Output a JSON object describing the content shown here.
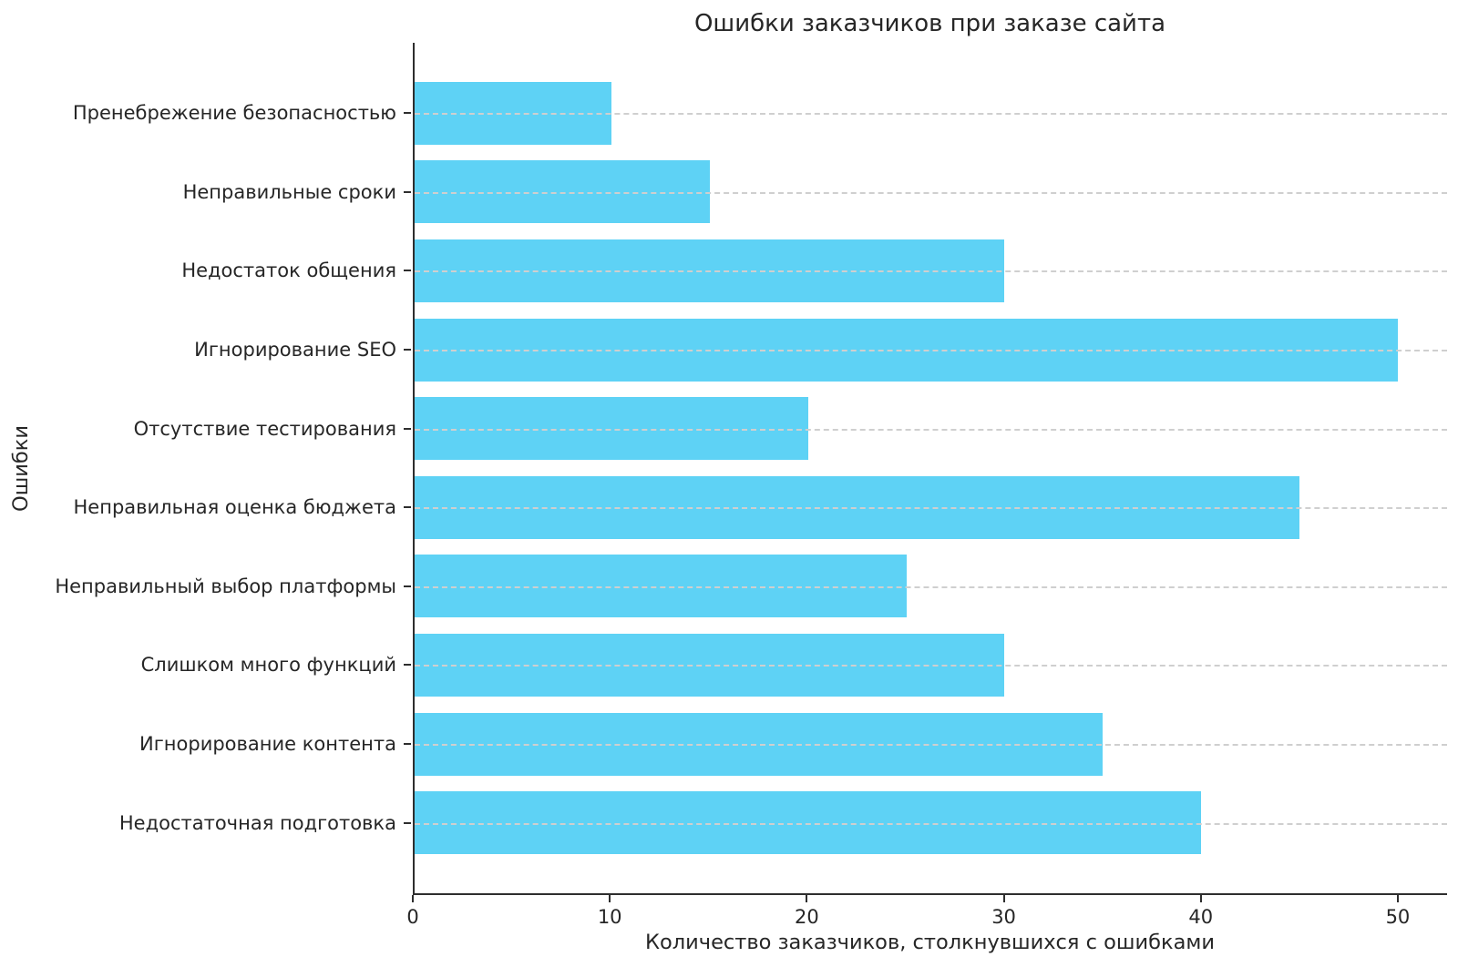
{
  "chart_data": {
    "type": "bar",
    "orientation": "horizontal",
    "title": "Ошибки заказчиков при заказе сайта",
    "xlabel": "Количество заказчиков, столкнувшихся с ошибками",
    "ylabel": "Ошибки",
    "categories": [
      "Пренебрежение безопасностью",
      "Неправильные сроки",
      "Недостаток общения",
      "Игнорирование SEO",
      "Отсутствие тестирования",
      "Неправильная оценка бюджета",
      "Неправильный выбор платформы",
      "Слишком много функций",
      "Игнорирование контента",
      "Недостаточная подготовка"
    ],
    "values": [
      10,
      15,
      30,
      50,
      20,
      45,
      25,
      30,
      35,
      40
    ],
    "xticks": [
      "0",
      "10",
      "20",
      "30",
      "40",
      "50"
    ],
    "xtick_values": [
      0,
      10,
      20,
      30,
      40,
      50
    ],
    "xlim": [
      0,
      52.5
    ],
    "bar_color": "#5ed2f5",
    "grid_color": "#cfcfcf",
    "grid_style": "dashed-horizontal-over-bars",
    "axis_color": "#2e2e2e",
    "text_color": "#262626",
    "legend": false,
    "category_order": "top-to-bottom"
  }
}
